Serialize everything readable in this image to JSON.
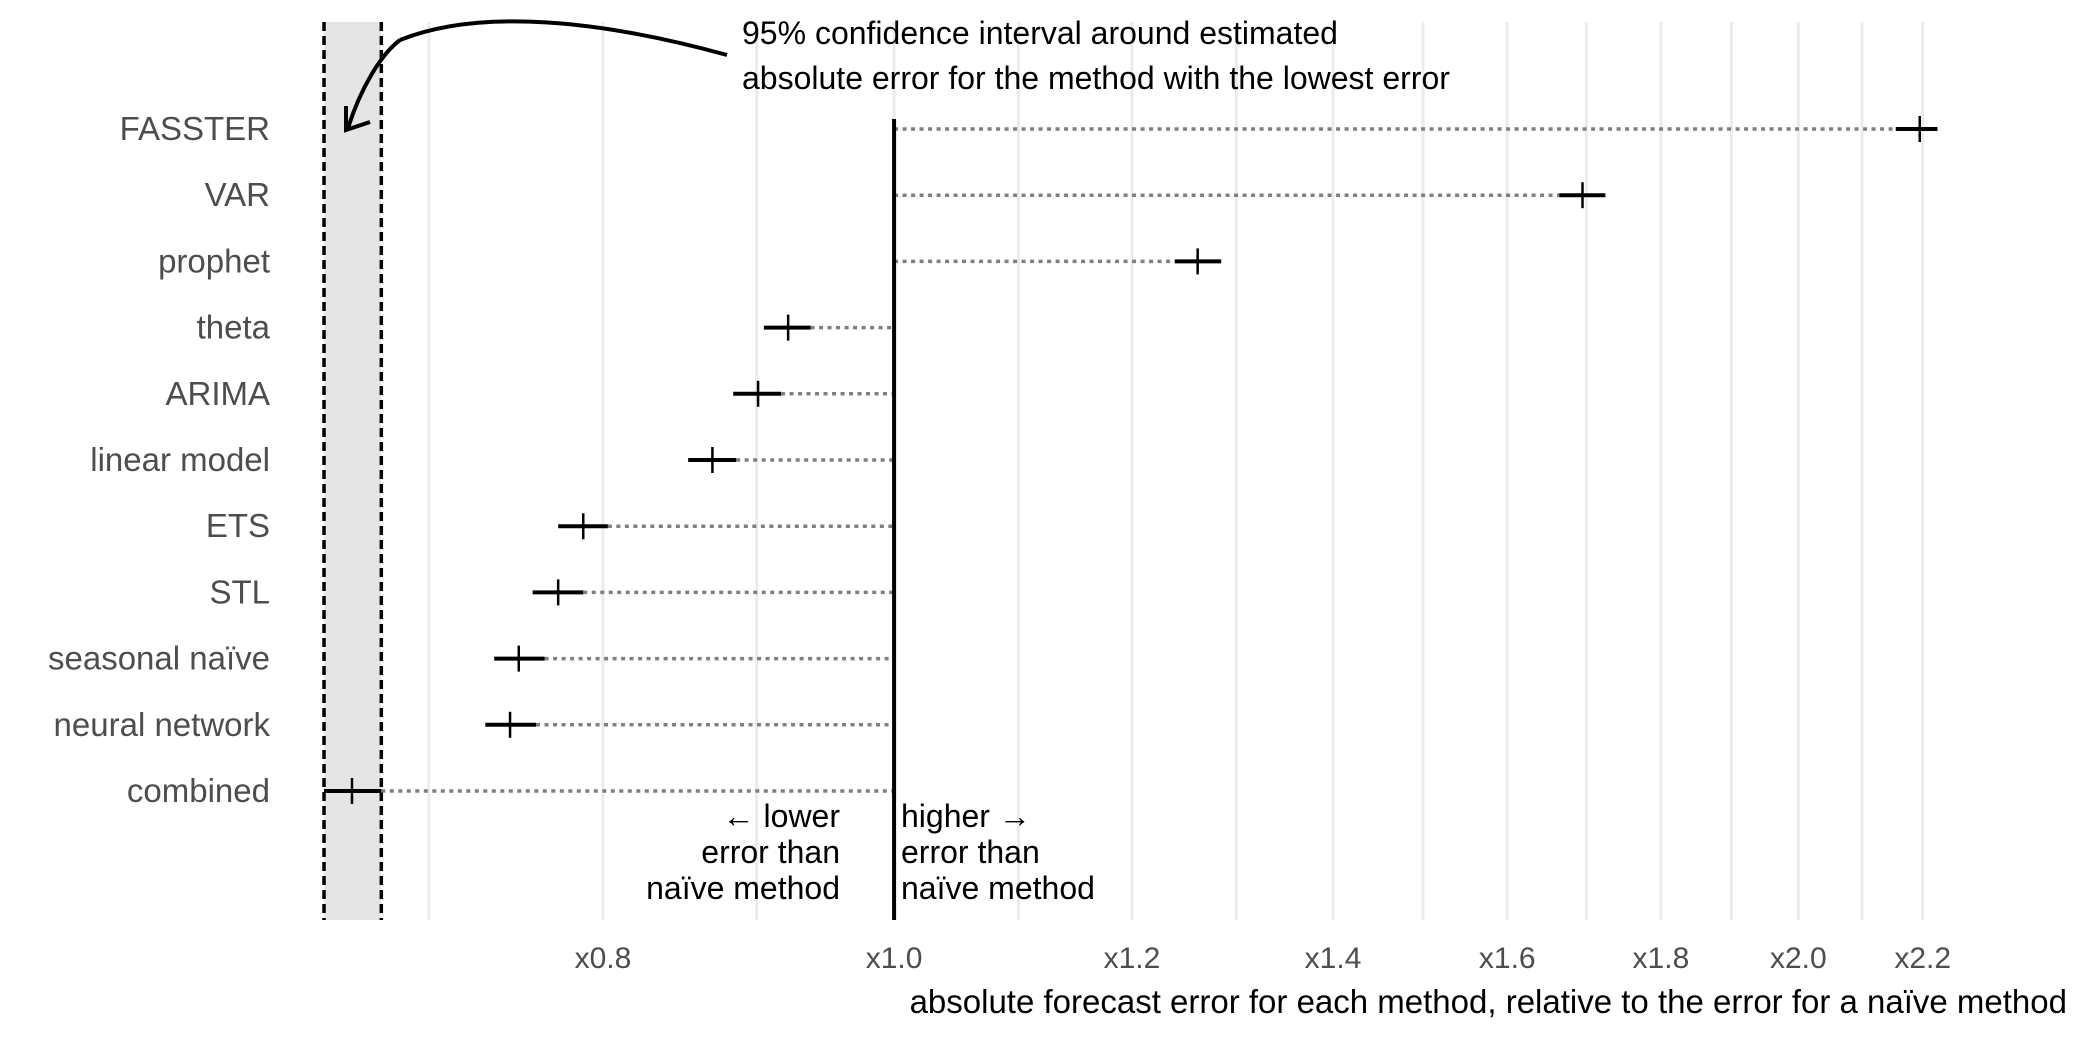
{
  "chart_data": {
    "type": "point-interval",
    "scale": "log",
    "reference": 1.0,
    "xlabel": "absolute forecast error for each method, relative to the error for a naïve method",
    "xlim": [
      0.645,
      2.32
    ],
    "x_ticks": [
      {
        "value": 0.8,
        "label": "x0.8"
      },
      {
        "value": 1.0,
        "label": "x1.0"
      },
      {
        "value": 1.2,
        "label": "x1.2"
      },
      {
        "value": 1.4,
        "label": "x1.4"
      },
      {
        "value": 1.6,
        "label": "x1.6"
      },
      {
        "value": 1.8,
        "label": "x1.8"
      },
      {
        "value": 2.0,
        "label": "x2.0"
      },
      {
        "value": 2.2,
        "label": "x2.2"
      }
    ],
    "minor_grid": [
      0.7,
      0.9,
      1.1,
      1.3,
      1.5,
      1.7,
      1.9,
      2.1
    ],
    "methods": [
      {
        "name": "FASSTER",
        "estimate": 2.195,
        "lower": 2.155,
        "upper": 2.225
      },
      {
        "name": "VAR",
        "estimate": 1.695,
        "lower": 1.665,
        "upper": 1.725
      },
      {
        "name": "prophet",
        "estimate": 1.262,
        "lower": 1.24,
        "upper": 1.285
      },
      {
        "name": "theta",
        "estimate": 0.922,
        "lower": 0.905,
        "upper": 0.938
      },
      {
        "name": "ARIMA",
        "estimate": 0.901,
        "lower": 0.884,
        "upper": 0.917
      },
      {
        "name": "linear model",
        "estimate": 0.87,
        "lower": 0.854,
        "upper": 0.886
      },
      {
        "name": "ETS",
        "estimate": 0.788,
        "lower": 0.773,
        "upper": 0.803
      },
      {
        "name": "STL",
        "estimate": 0.773,
        "lower": 0.758,
        "upper": 0.788
      },
      {
        "name": "seasonal naïve",
        "estimate": 0.75,
        "lower": 0.736,
        "upper": 0.765
      },
      {
        "name": "neural network",
        "estimate": 0.745,
        "lower": 0.731,
        "upper": 0.76
      },
      {
        "name": "combined",
        "estimate": 0.66,
        "lower": 0.646,
        "upper": 0.675
      }
    ],
    "best_method_band": {
      "method": "combined",
      "lower": 0.646,
      "upper": 0.675
    },
    "annotations": {
      "band_note": [
        "95% confidence interval around estimated",
        "absolute error for the method with the lowest error"
      ],
      "lower_note": [
        "← lower",
        "error than",
        "naïve method"
      ],
      "higher_note": [
        "higher →",
        "error than",
        "naïve method"
      ]
    },
    "grid": true,
    "legend": "none"
  }
}
